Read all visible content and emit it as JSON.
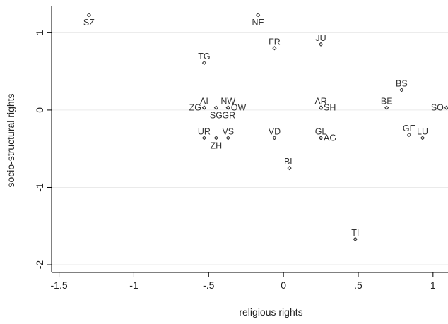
{
  "chart_data": {
    "type": "scatter",
    "title": "",
    "xlabel": "religious rights",
    "ylabel": "socio-structural rights",
    "xlim": [
      -1.55,
      1.1
    ],
    "ylim": [
      -2.1,
      1.35
    ],
    "grid": "horizontal",
    "x_ticks": [
      {
        "value": -1.5,
        "label": "-1.5"
      },
      {
        "value": -1,
        "label": "-1"
      },
      {
        "value": -0.5,
        "label": "-.5"
      },
      {
        "value": 0,
        "label": "0"
      },
      {
        "value": 0.5,
        "label": ".5"
      },
      {
        "value": 1,
        "label": "1"
      }
    ],
    "y_ticks": [
      {
        "value": 1,
        "label": "1"
      },
      {
        "value": 0,
        "label": "0"
      },
      {
        "value": -1,
        "label": "-1"
      },
      {
        "value": -2,
        "label": "-2"
      }
    ],
    "points": [
      {
        "label": "SZ",
        "x": -1.3,
        "y": 1.23,
        "pos": "below"
      },
      {
        "label": "NE",
        "x": -0.17,
        "y": 1.23,
        "pos": "below"
      },
      {
        "label": "FR",
        "x": -0.06,
        "y": 0.8,
        "pos": "above"
      },
      {
        "label": "JU",
        "x": 0.25,
        "y": 0.85,
        "pos": "above"
      },
      {
        "label": "TG",
        "x": -0.53,
        "y": 0.61,
        "pos": "above"
      },
      {
        "label": "BS",
        "x": 0.79,
        "y": 0.26,
        "pos": "above"
      },
      {
        "label": "AI",
        "x": -0.53,
        "y": 0.03,
        "pos": "above"
      },
      {
        "label": "ZG",
        "x": -0.53,
        "y": 0.03,
        "pos": "left"
      },
      {
        "label": "NW",
        "x": -0.37,
        "y": 0.03,
        "pos": "above"
      },
      {
        "label": "OW",
        "x": -0.37,
        "y": 0.03,
        "pos": "right"
      },
      {
        "label": "SG",
        "x": -0.45,
        "y": 0.03,
        "pos": "below"
      },
      {
        "label": "GR",
        "x": -0.37,
        "y": 0.03,
        "pos": "belowleft"
      },
      {
        "label": "AR",
        "x": 0.25,
        "y": 0.03,
        "pos": "above"
      },
      {
        "label": "SH",
        "x": 0.25,
        "y": 0.03,
        "pos": "right"
      },
      {
        "label": "BE",
        "x": 0.69,
        "y": 0.03,
        "pos": "above"
      },
      {
        "label": "SO",
        "x": 1.09,
        "y": 0.03,
        "pos": "left"
      },
      {
        "label": "UR",
        "x": -0.53,
        "y": -0.36,
        "pos": "above"
      },
      {
        "label": "VS",
        "x": -0.37,
        "y": -0.36,
        "pos": "above"
      },
      {
        "label": "ZH",
        "x": -0.45,
        "y": -0.36,
        "pos": "below"
      },
      {
        "label": "VD",
        "x": -0.06,
        "y": -0.36,
        "pos": "above"
      },
      {
        "label": "GL",
        "x": 0.25,
        "y": -0.36,
        "pos": "above"
      },
      {
        "label": "AG",
        "x": 0.25,
        "y": -0.36,
        "pos": "right"
      },
      {
        "label": "GE",
        "x": 0.84,
        "y": -0.32,
        "pos": "above"
      },
      {
        "label": "LU",
        "x": 0.93,
        "y": -0.36,
        "pos": "above"
      },
      {
        "label": "BL",
        "x": 0.04,
        "y": -0.75,
        "pos": "above"
      },
      {
        "label": "TI",
        "x": 0.48,
        "y": -1.67,
        "pos": "above"
      }
    ]
  }
}
